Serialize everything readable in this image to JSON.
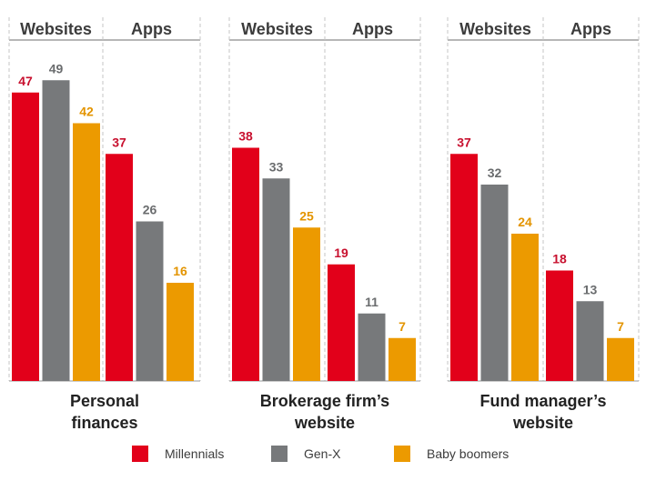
{
  "chart_data": {
    "type": "bar",
    "groups": [
      {
        "title_lines": [
          "Personal",
          "finances"
        ],
        "panels": [
          {
            "header": "Websites",
            "values": [
              47,
              49,
              42
            ]
          },
          {
            "header": "Apps",
            "values": [
              37,
              26,
              16
            ]
          }
        ]
      },
      {
        "title_lines": [
          "Brokerage firm’s",
          "website"
        ],
        "panels": [
          {
            "header": "Websites",
            "values": [
              38,
              33,
              25
            ]
          },
          {
            "header": "Apps",
            "values": [
              19,
              11,
              7
            ]
          }
        ]
      },
      {
        "title_lines": [
          "Fund manager’s",
          "website"
        ],
        "panels": [
          {
            "header": "Websites",
            "values": [
              37,
              32,
              24
            ]
          },
          {
            "header": "Apps",
            "values": [
              18,
              13,
              7
            ]
          }
        ]
      }
    ],
    "series": [
      {
        "name": "Millennials",
        "color": "#e2001a",
        "label_color": "#c8102e"
      },
      {
        "name": "Gen-X",
        "color": "#77797b",
        "label_color": "#6a6c6e"
      },
      {
        "name": "Baby boomers",
        "color": "#ec9a00",
        "label_color": "#e39400"
      }
    ],
    "ylim": [
      0,
      52
    ],
    "legend_position": "bottom"
  }
}
